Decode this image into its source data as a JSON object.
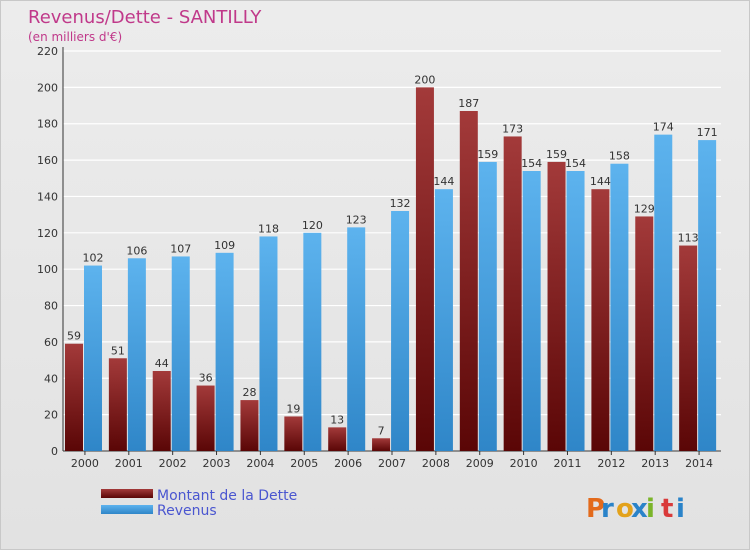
{
  "chart_data": {
    "type": "bar",
    "title": "Revenus/Dette - SANTILLY",
    "subtitle": "(en milliers d'€)",
    "categories": [
      "2000",
      "2001",
      "2002",
      "2003",
      "2004",
      "2005",
      "2006",
      "2007",
      "2008",
      "2009",
      "2010",
      "2011",
      "2012",
      "2013",
      "2014"
    ],
    "series": [
      {
        "name": "Montant de la Dette",
        "color": "#8b2020",
        "values": [
          59,
          51,
          44,
          36,
          28,
          19,
          13,
          7,
          200,
          187,
          173,
          159,
          144,
          129,
          113
        ]
      },
      {
        "name": "Revenus",
        "color": "#4aa6e6",
        "values": [
          102,
          106,
          107,
          109,
          118,
          120,
          123,
          132,
          144,
          159,
          154,
          154,
          158,
          174,
          171
        ]
      }
    ],
    "ylim": [
      0,
      220
    ],
    "yticks": [
      0,
      20,
      40,
      60,
      80,
      100,
      120,
      140,
      160,
      180,
      200,
      220
    ],
    "grid": true,
    "legend_position": "bottom-left"
  },
  "logo": {
    "letters": [
      "P",
      "r",
      "o",
      "x",
      "i",
      "t",
      "i"
    ],
    "colors": [
      "#e36a1b",
      "#2a83c9",
      "#e3a21b",
      "#2a83c9",
      "#7bb52a",
      "#d93a3a",
      "#2a83c9"
    ]
  }
}
